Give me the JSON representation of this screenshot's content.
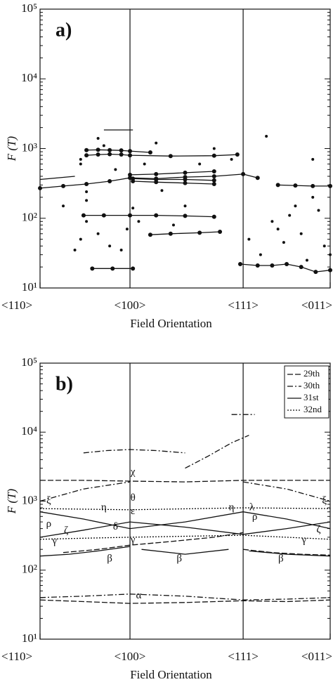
{
  "chart_data": [
    {
      "type": "line",
      "panel_label": "a)",
      "xlabel": "Field Orientation",
      "ylabel": "F (T)",
      "log_y": true,
      "xlim": [
        0,
        100
      ],
      "xticks": [
        {
          "value": 0,
          "label": "<110>"
        },
        {
          "value": 31,
          "label": "<100>"
        },
        {
          "value": 70,
          "label": "<111>"
        },
        {
          "value": 100,
          "label": "<011>"
        }
      ],
      "ylim": [
        10,
        100000
      ],
      "yticks": [
        {
          "value": 10,
          "label": "10¹"
        },
        {
          "value": 100,
          "label": "10²"
        },
        {
          "value": 1000,
          "label": "10³"
        },
        {
          "value": 10000,
          "label": "10⁴"
        },
        {
          "value": 100000,
          "label": "10⁵"
        }
      ],
      "series": [
        {
          "color": "#111111",
          "line": true,
          "markers": true,
          "x": [
            0,
            8,
            16,
            24,
            31,
            40,
            50,
            60,
            70,
            75
          ],
          "values": [
            270,
            290,
            310,
            340,
            380,
            370,
            390,
            400,
            430,
            380
          ]
        },
        {
          "color": "#111111",
          "line": true,
          "markers": true,
          "x": [
            16,
            20,
            24,
            28,
            31,
            45,
            60,
            68
          ],
          "values": [
            800,
            820,
            830,
            820,
            800,
            780,
            790,
            820
          ]
        },
        {
          "color": "#111111",
          "line": true,
          "markers": true,
          "x": [
            16,
            20,
            24,
            28,
            31,
            38
          ],
          "values": [
            950,
            960,
            950,
            940,
            920,
            880
          ]
        },
        {
          "color": "#111111",
          "line": true,
          "markers": false,
          "x": [
            22,
            32
          ],
          "values": [
            1850,
            1850
          ]
        },
        {
          "color": "#111111",
          "line": true,
          "markers": true,
          "x": [
            15,
            22,
            31,
            40,
            50,
            60
          ],
          "values": [
            110,
            110,
            110,
            110,
            108,
            105
          ]
        },
        {
          "color": "#111111",
          "line": true,
          "markers": true,
          "x": [
            31,
            40,
            50,
            60
          ],
          "values": [
            420,
            430,
            450,
            470
          ]
        },
        {
          "color": "#111111",
          "line": true,
          "markers": true,
          "x": [
            32,
            40,
            50,
            60
          ],
          "values": [
            340,
            330,
            320,
            310
          ]
        },
        {
          "color": "#111111",
          "line": true,
          "markers": true,
          "x": [
            32,
            40,
            50,
            60
          ],
          "values": [
            370,
            360,
            360,
            350
          ]
        },
        {
          "color": "#111111",
          "line": true,
          "markers": true,
          "x": [
            38,
            45,
            55,
            62
          ],
          "values": [
            58,
            60,
            62,
            64
          ]
        },
        {
          "color": "#111111",
          "line": true,
          "markers": true,
          "x": [
            18,
            25,
            32
          ],
          "values": [
            19,
            19,
            19
          ]
        },
        {
          "color": "#111111",
          "line": true,
          "markers": true,
          "x": [
            69,
            75,
            80,
            85,
            90,
            95,
            100
          ],
          "values": [
            22,
            21,
            21,
            22,
            20,
            17,
            18
          ]
        },
        {
          "color": "#111111",
          "line": true,
          "markers": true,
          "x": [
            82,
            88,
            94,
            100
          ],
          "values": [
            300,
            295,
            290,
            290
          ]
        },
        {
          "color": "#111111",
          "line": true,
          "markers": false,
          "x": [
            0,
            12
          ],
          "values": [
            360,
            400
          ]
        },
        {
          "color": "#111111",
          "line": false,
          "markers": true,
          "x": [
            8,
            12,
            14,
            14,
            14,
            16,
            16,
            16,
            20,
            22,
            24,
            26,
            30,
            32,
            34,
            36,
            40,
            42,
            46,
            50,
            55,
            60,
            66,
            72,
            76,
            80,
            84,
            88,
            90,
            92,
            94,
            96,
            98,
            100,
            78,
            82,
            86,
            94,
            20,
            28
          ],
          "values": [
            150,
            35,
            700,
            600,
            50,
            240,
            180,
            90,
            60,
            1100,
            40,
            500,
            70,
            140,
            90,
            600,
            1200,
            250,
            80,
            150,
            600,
            1000,
            700,
            50,
            30,
            90,
            45,
            150,
            60,
            25,
            700,
            130,
            40,
            30,
            1500,
            70,
            110,
            200,
            1400,
            35
          ]
        }
      ]
    },
    {
      "type": "line",
      "panel_label": "b)",
      "xlabel": "Field Orientation",
      "ylabel": "F (T)",
      "log_y": true,
      "legend": "top-right",
      "xlim": [
        0,
        100
      ],
      "xticks": [
        {
          "value": 0,
          "label": "<110>"
        },
        {
          "value": 31,
          "label": "<100>"
        },
        {
          "value": 70,
          "label": "<111>"
        },
        {
          "value": 100,
          "label": "<011>"
        }
      ],
      "ylim": [
        10,
        100000
      ],
      "yticks": [
        {
          "value": 10,
          "label": "10¹"
        },
        {
          "value": 100,
          "label": "10²"
        },
        {
          "value": 1000,
          "label": "10³"
        },
        {
          "value": 10000,
          "label": "10⁴"
        },
        {
          "value": 100000,
          "label": "10⁵"
        }
      ],
      "series": [
        {
          "name": "29th",
          "color": "#111111",
          "dash": "8,3",
          "x": [
            0,
            15,
            31,
            50,
            70,
            85,
            100,
            100,
            0,
            15,
            31,
            50,
            70,
            85,
            100,
            100,
            8,
            20,
            31,
            45,
            60,
            70,
            70,
            70,
            80,
            90,
            100
          ],
          "values": [
            37,
            35,
            33,
            34,
            36,
            35,
            37,
            null,
            2000,
            2000,
            1950,
            1900,
            2000,
            2000,
            2000,
            null,
            180,
            200,
            230,
            260,
            300,
            350,
            null,
            200,
            180,
            170,
            165
          ]
        },
        {
          "name": "30th",
          "color": "#111111",
          "dash": "8,3,2,3",
          "x": [
            15,
            23,
            31,
            40,
            50,
            50,
            0,
            15,
            31,
            31,
            70,
            85,
            100,
            100,
            50,
            58,
            66,
            72,
            72,
            0,
            15,
            31,
            50,
            70,
            85,
            100,
            100,
            66,
            70,
            74
          ],
          "values": [
            5000,
            5400,
            5600,
            5400,
            5000,
            null,
            1000,
            1500,
            1900,
            null,
            1900,
            1500,
            1000,
            null,
            3000,
            4500,
            7000,
            9000,
            null,
            40,
            42,
            45,
            42,
            37,
            38,
            40,
            null,
            18000,
            18000,
            18000
          ]
        },
        {
          "name": "31st",
          "color": "#111111",
          "dash": "none",
          "x": [
            0,
            15,
            31,
            50,
            70,
            85,
            100,
            100,
            0,
            15,
            31,
            50,
            70,
            85,
            100,
            100,
            0,
            10,
            20,
            31,
            31,
            35,
            50,
            65,
            65,
            72,
            85,
            100
          ],
          "values": [
            700,
            550,
            400,
            500,
            700,
            550,
            400,
            null,
            300,
            380,
            500,
            420,
            330,
            400,
            500,
            null,
            160,
            170,
            190,
            220,
            null,
            200,
            170,
            200,
            null,
            190,
            170,
            160
          ]
        },
        {
          "name": "32nd",
          "color": "#111111",
          "dash": "2,2",
          "x": [
            0,
            15,
            31,
            50,
            70,
            85,
            100,
            100,
            0,
            31,
            70,
            100
          ],
          "values": [
            280,
            290,
            300,
            310,
            320,
            300,
            280,
            null,
            780,
            750,
            800,
            780
          ]
        }
      ],
      "annotations": [
        {
          "text": "ξ",
          "x": 3,
          "y": 1000
        },
        {
          "text": "η",
          "x": 22,
          "y": 800
        },
        {
          "text": "ρ",
          "x": 3,
          "y": 460
        },
        {
          "text": "ζ",
          "x": 9,
          "y": 370
        },
        {
          "text": "γ",
          "x": 5,
          "y": 260
        },
        {
          "text": "δ",
          "x": 26,
          "y": 420
        },
        {
          "text": "β",
          "x": 24,
          "y": 145
        },
        {
          "text": "χ",
          "x": 32,
          "y": 2600
        },
        {
          "text": "θ",
          "x": 32,
          "y": 1100
        },
        {
          "text": "ε",
          "x": 32,
          "y": 700
        },
        {
          "text": "γ",
          "x": 32,
          "y": 270
        },
        {
          "text": "β",
          "x": 48,
          "y": 145
        },
        {
          "text": "η",
          "x": 66,
          "y": 800
        },
        {
          "text": "λ",
          "x": 73,
          "y": 800
        },
        {
          "text": "ρ",
          "x": 74,
          "y": 580
        },
        {
          "text": "ζ",
          "x": 96,
          "y": 380
        },
        {
          "text": "γ",
          "x": 91,
          "y": 270
        },
        {
          "text": "β",
          "x": 83,
          "y": 145
        },
        {
          "text": "ξ",
          "x": 98,
          "y": 1000
        },
        {
          "text": "α",
          "x": 34,
          "y": 42
        }
      ]
    }
  ]
}
